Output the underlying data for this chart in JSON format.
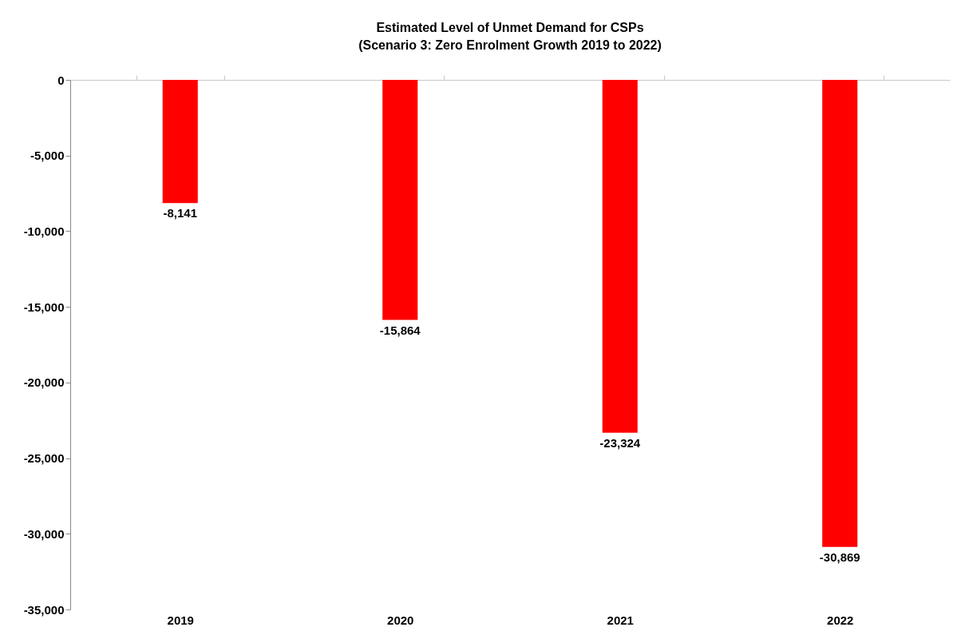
{
  "chart_data": {
    "type": "bar",
    "title": [
      "Estimated Level of Unmet Demand  for CSPs",
      "(Scenario 3:  Zero Enrolment Growth 2019 to 2022)"
    ],
    "categories": [
      "2019",
      "2020",
      "2021",
      "2022"
    ],
    "values": [
      -8141,
      -15864,
      -23324,
      -30869
    ],
    "value_labels": [
      "-8,141",
      "-15,864",
      "-23,324",
      "-30,869"
    ],
    "color": "#ff0000",
    "ylim": [
      -35000,
      0
    ],
    "yticks": [
      {
        "value": -35000,
        "label": "-35,000"
      },
      {
        "value": -30000,
        "label": "-30,000"
      },
      {
        "value": -25000,
        "label": "-25,000"
      },
      {
        "value": -20000,
        "label": "-20,000"
      },
      {
        "value": -15000,
        "label": "-15,000"
      },
      {
        "value": -10000,
        "label": "-10,000"
      },
      {
        "value": -5000,
        "label": "-5,000"
      },
      0
    ],
    "grid": false
  }
}
